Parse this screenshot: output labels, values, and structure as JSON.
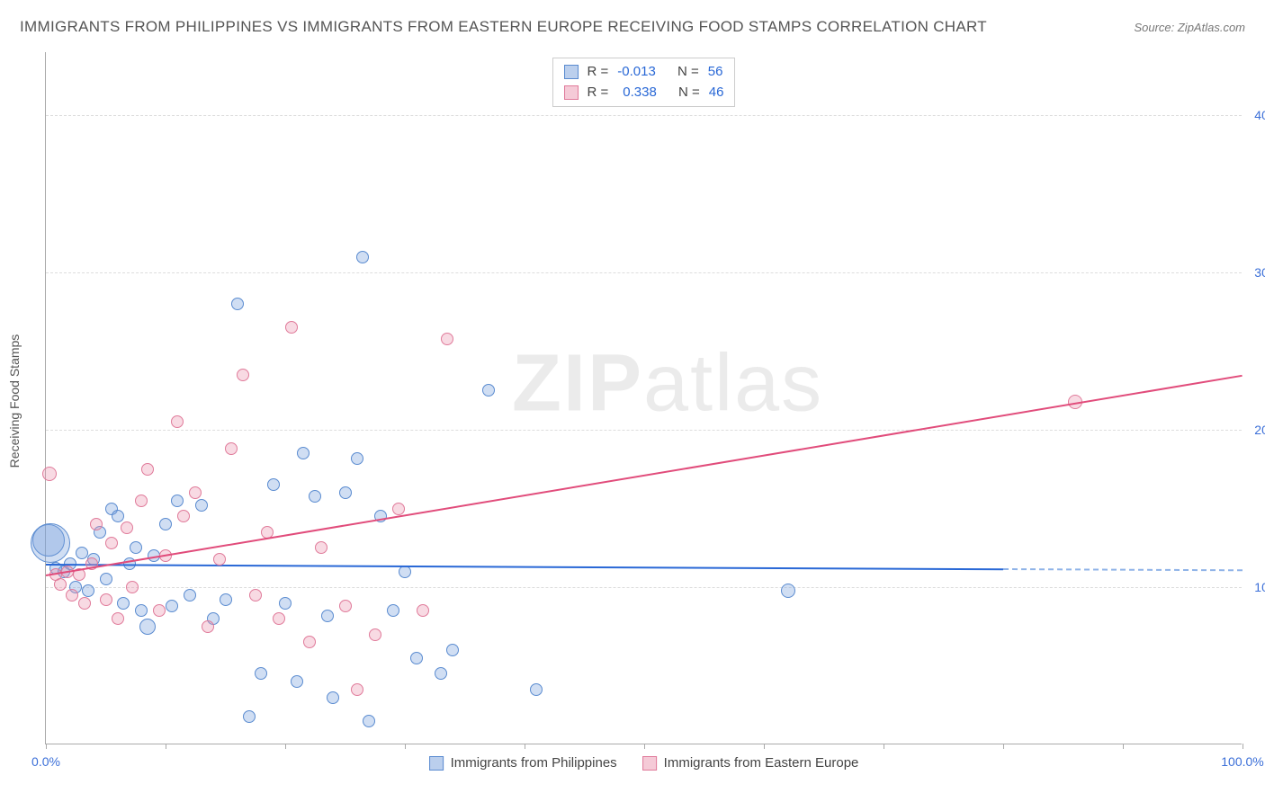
{
  "title": "IMMIGRANTS FROM PHILIPPINES VS IMMIGRANTS FROM EASTERN EUROPE RECEIVING FOOD STAMPS CORRELATION CHART",
  "source": "Source: ZipAtlas.com",
  "ylabel": "Receiving Food Stamps",
  "watermark_a": "ZIP",
  "watermark_b": "atlas",
  "chart": {
    "type": "scatter",
    "xlim": [
      0,
      100
    ],
    "ylim": [
      0,
      44
    ],
    "x_ticks": [
      0,
      10,
      20,
      30,
      40,
      50,
      60,
      70,
      80,
      90,
      100
    ],
    "y_ticks": [
      10,
      20,
      30,
      40
    ],
    "x_tick_labels": {
      "0": "0.0%",
      "100": "100.0%"
    },
    "y_tick_labels": {
      "10": "10.0%",
      "20": "20.0%",
      "30": "30.0%",
      "40": "40.0%"
    },
    "grid_color": "#dddddd",
    "axis_color": "#aaaaaa",
    "background_color": "#ffffff",
    "tick_label_color": "#3b6fd8",
    "series": [
      {
        "name": "Immigrants from Philippines",
        "color_fill": "rgba(120,160,220,0.35)",
        "color_stroke": "#5a8bd0",
        "trend_color": "#2968d6",
        "R": "-0.013",
        "N": "56",
        "trend": {
          "x1": 0,
          "y1": 11.5,
          "x2": 80,
          "y2": 11.2,
          "dash_to": 100
        },
        "points": [
          {
            "x": 0.2,
            "y": 13.0,
            "r": 18
          },
          {
            "x": 0.4,
            "y": 12.8,
            "r": 22
          },
          {
            "x": 0.8,
            "y": 11.2,
            "r": 7
          },
          {
            "x": 1.5,
            "y": 11.0,
            "r": 7
          },
          {
            "x": 2.0,
            "y": 11.5,
            "r": 7
          },
          {
            "x": 2.5,
            "y": 10.0,
            "r": 7
          },
          {
            "x": 3.0,
            "y": 12.2,
            "r": 7
          },
          {
            "x": 3.5,
            "y": 9.8,
            "r": 7
          },
          {
            "x": 4.0,
            "y": 11.8,
            "r": 7
          },
          {
            "x": 4.5,
            "y": 13.5,
            "r": 7
          },
          {
            "x": 5.0,
            "y": 10.5,
            "r": 7
          },
          {
            "x": 5.5,
            "y": 15.0,
            "r": 7
          },
          {
            "x": 6.0,
            "y": 14.5,
            "r": 7
          },
          {
            "x": 6.5,
            "y": 9.0,
            "r": 7
          },
          {
            "x": 7.0,
            "y": 11.5,
            "r": 7
          },
          {
            "x": 7.5,
            "y": 12.5,
            "r": 7
          },
          {
            "x": 8.0,
            "y": 8.5,
            "r": 7
          },
          {
            "x": 8.5,
            "y": 7.5,
            "r": 9
          },
          {
            "x": 9.0,
            "y": 12.0,
            "r": 7
          },
          {
            "x": 10.0,
            "y": 14.0,
            "r": 7
          },
          {
            "x": 10.5,
            "y": 8.8,
            "r": 7
          },
          {
            "x": 11.0,
            "y": 15.5,
            "r": 7
          },
          {
            "x": 12.0,
            "y": 9.5,
            "r": 7
          },
          {
            "x": 13.0,
            "y": 15.2,
            "r": 7
          },
          {
            "x": 14.0,
            "y": 8.0,
            "r": 7
          },
          {
            "x": 15.0,
            "y": 9.2,
            "r": 7
          },
          {
            "x": 16.0,
            "y": 28.0,
            "r": 7
          },
          {
            "x": 17.0,
            "y": 1.8,
            "r": 7
          },
          {
            "x": 18.0,
            "y": 4.5,
            "r": 7
          },
          {
            "x": 19.0,
            "y": 16.5,
            "r": 7
          },
          {
            "x": 20.0,
            "y": 9.0,
            "r": 7
          },
          {
            "x": 21.0,
            "y": 4.0,
            "r": 7
          },
          {
            "x": 21.5,
            "y": 18.5,
            "r": 7
          },
          {
            "x": 22.5,
            "y": 15.8,
            "r": 7
          },
          {
            "x": 23.5,
            "y": 8.2,
            "r": 7
          },
          {
            "x": 24.0,
            "y": 3.0,
            "r": 7
          },
          {
            "x": 25.0,
            "y": 16.0,
            "r": 7
          },
          {
            "x": 26.0,
            "y": 18.2,
            "r": 7
          },
          {
            "x": 26.5,
            "y": 31.0,
            "r": 7
          },
          {
            "x": 27.0,
            "y": 1.5,
            "r": 7
          },
          {
            "x": 28.0,
            "y": 14.5,
            "r": 7
          },
          {
            "x": 29.0,
            "y": 8.5,
            "r": 7
          },
          {
            "x": 30.0,
            "y": 11.0,
            "r": 7
          },
          {
            "x": 31.0,
            "y": 5.5,
            "r": 7
          },
          {
            "x": 33.0,
            "y": 4.5,
            "r": 7
          },
          {
            "x": 34.0,
            "y": 6.0,
            "r": 7
          },
          {
            "x": 37.0,
            "y": 22.5,
            "r": 7
          },
          {
            "x": 41.0,
            "y": 3.5,
            "r": 7
          },
          {
            "x": 62.0,
            "y": 9.8,
            "r": 8
          }
        ]
      },
      {
        "name": "Immigrants from Eastern Europe",
        "color_fill": "rgba(235,150,175,0.35)",
        "color_stroke": "#e07a9a",
        "trend_color": "#e14c7b",
        "R": "0.338",
        "N": "46",
        "trend": {
          "x1": 0,
          "y1": 10.8,
          "x2": 100,
          "y2": 23.5
        },
        "points": [
          {
            "x": 0.3,
            "y": 17.2,
            "r": 8
          },
          {
            "x": 0.8,
            "y": 10.8,
            "r": 7
          },
          {
            "x": 1.2,
            "y": 10.2,
            "r": 7
          },
          {
            "x": 1.8,
            "y": 11.0,
            "r": 7
          },
          {
            "x": 2.2,
            "y": 9.5,
            "r": 7
          },
          {
            "x": 2.8,
            "y": 10.8,
            "r": 7
          },
          {
            "x": 3.2,
            "y": 9.0,
            "r": 7
          },
          {
            "x": 3.8,
            "y": 11.5,
            "r": 7
          },
          {
            "x": 4.2,
            "y": 14.0,
            "r": 7
          },
          {
            "x": 5.0,
            "y": 9.2,
            "r": 7
          },
          {
            "x": 5.5,
            "y": 12.8,
            "r": 7
          },
          {
            "x": 6.0,
            "y": 8.0,
            "r": 7
          },
          {
            "x": 6.8,
            "y": 13.8,
            "r": 7
          },
          {
            "x": 7.2,
            "y": 10.0,
            "r": 7
          },
          {
            "x": 8.0,
            "y": 15.5,
            "r": 7
          },
          {
            "x": 8.5,
            "y": 17.5,
            "r": 7
          },
          {
            "x": 9.5,
            "y": 8.5,
            "r": 7
          },
          {
            "x": 10.0,
            "y": 12.0,
            "r": 7
          },
          {
            "x": 11.0,
            "y": 20.5,
            "r": 7
          },
          {
            "x": 11.5,
            "y": 14.5,
            "r": 7
          },
          {
            "x": 12.5,
            "y": 16.0,
            "r": 7
          },
          {
            "x": 13.5,
            "y": 7.5,
            "r": 7
          },
          {
            "x": 14.5,
            "y": 11.8,
            "r": 7
          },
          {
            "x": 15.5,
            "y": 18.8,
            "r": 7
          },
          {
            "x": 16.5,
            "y": 23.5,
            "r": 7
          },
          {
            "x": 17.5,
            "y": 9.5,
            "r": 7
          },
          {
            "x": 18.5,
            "y": 13.5,
            "r": 7
          },
          {
            "x": 19.5,
            "y": 8.0,
            "r": 7
          },
          {
            "x": 20.5,
            "y": 26.5,
            "r": 7
          },
          {
            "x": 22.0,
            "y": 6.5,
            "r": 7
          },
          {
            "x": 23.0,
            "y": 12.5,
            "r": 7
          },
          {
            "x": 25.0,
            "y": 8.8,
            "r": 7
          },
          {
            "x": 26.0,
            "y": 3.5,
            "r": 7
          },
          {
            "x": 27.5,
            "y": 7.0,
            "r": 7
          },
          {
            "x": 29.5,
            "y": 15.0,
            "r": 7
          },
          {
            "x": 31.5,
            "y": 8.5,
            "r": 7
          },
          {
            "x": 33.5,
            "y": 25.8,
            "r": 7
          },
          {
            "x": 86.0,
            "y": 21.8,
            "r": 8
          }
        ]
      }
    ]
  },
  "stat_labels": {
    "R": "R =",
    "N": "N ="
  }
}
